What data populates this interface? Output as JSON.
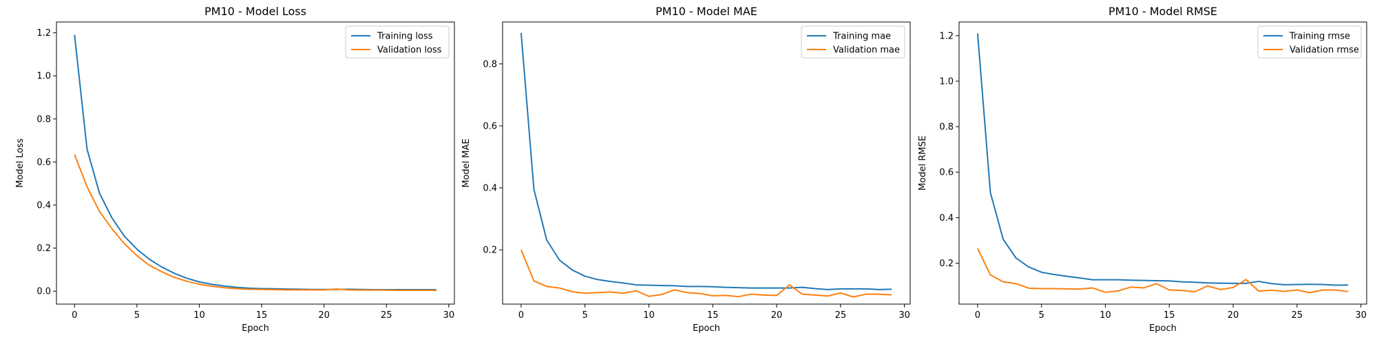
{
  "chart_data": [
    {
      "type": "line",
      "title": "PM10 - Model Loss",
      "xlabel": "Epoch",
      "ylabel": "Model Loss",
      "xlim": [
        -1.45,
        30.45
      ],
      "ylim": [
        -0.06,
        1.25
      ],
      "xticks": [
        0,
        5,
        10,
        15,
        20,
        25,
        30
      ],
      "yticks": [
        0.0,
        0.2,
        0.4,
        0.6,
        0.8,
        1.0,
        1.2
      ],
      "ytick_labels": [
        "0.0",
        "0.2",
        "0.4",
        "0.6",
        "0.8",
        "1.0",
        "1.2"
      ],
      "legend": "top-right",
      "grid": false,
      "x": [
        0,
        1,
        2,
        3,
        4,
        5,
        6,
        7,
        8,
        9,
        10,
        11,
        12,
        13,
        14,
        15,
        16,
        17,
        18,
        19,
        20,
        21,
        22,
        23,
        24,
        25,
        26,
        27,
        28,
        29
      ],
      "series": [
        {
          "name": "Training loss",
          "color": "#1f77b4",
          "values": [
            1.19,
            0.66,
            0.455,
            0.34,
            0.255,
            0.195,
            0.148,
            0.112,
            0.083,
            0.06,
            0.043,
            0.032,
            0.024,
            0.018,
            0.014,
            0.012,
            0.011,
            0.01,
            0.009,
            0.008,
            0.008,
            0.008,
            0.009,
            0.008,
            0.007,
            0.007,
            0.007,
            0.007,
            0.007,
            0.007
          ]
        },
        {
          "name": "Validation loss",
          "color": "#ff7f0e",
          "values": [
            0.635,
            0.485,
            0.37,
            0.29,
            0.22,
            0.165,
            0.12,
            0.09,
            0.064,
            0.046,
            0.032,
            0.023,
            0.016,
            0.012,
            0.009,
            0.008,
            0.007,
            0.006,
            0.006,
            0.006,
            0.006,
            0.01,
            0.006,
            0.005,
            0.005,
            0.005,
            0.004,
            0.004,
            0.004,
            0.004
          ]
        }
      ]
    },
    {
      "type": "line",
      "title": "PM10 - Model MAE",
      "xlabel": "Epoch",
      "ylabel": "Model MAE",
      "xlim": [
        -1.45,
        30.45
      ],
      "ylim": [
        0.025,
        0.935
      ],
      "xticks": [
        0,
        5,
        10,
        15,
        20,
        25,
        30
      ],
      "yticks": [
        0.2,
        0.4,
        0.6,
        0.8
      ],
      "ytick_labels": [
        "0.2",
        "0.4",
        "0.6",
        "0.8"
      ],
      "legend": "top-right",
      "grid": false,
      "x": [
        0,
        1,
        2,
        3,
        4,
        5,
        6,
        7,
        8,
        9,
        10,
        11,
        12,
        13,
        14,
        15,
        16,
        17,
        18,
        19,
        20,
        21,
        22,
        23,
        24,
        25,
        26,
        27,
        28,
        29
      ],
      "series": [
        {
          "name": "Training mae",
          "color": "#1f77b4",
          "values": [
            0.9,
            0.395,
            0.232,
            0.167,
            0.135,
            0.115,
            0.104,
            0.098,
            0.093,
            0.087,
            0.086,
            0.085,
            0.084,
            0.082,
            0.082,
            0.081,
            0.079,
            0.078,
            0.077,
            0.077,
            0.077,
            0.077,
            0.079,
            0.075,
            0.072,
            0.074,
            0.074,
            0.074,
            0.072,
            0.073
          ]
        },
        {
          "name": "Validation mae",
          "color": "#ff7f0e",
          "values": [
            0.2,
            0.1,
            0.082,
            0.077,
            0.065,
            0.06,
            0.062,
            0.064,
            0.06,
            0.068,
            0.05,
            0.056,
            0.071,
            0.062,
            0.059,
            0.052,
            0.053,
            0.049,
            0.057,
            0.054,
            0.053,
            0.087,
            0.057,
            0.054,
            0.051,
            0.061,
            0.048,
            0.057,
            0.057,
            0.055
          ]
        }
      ]
    },
    {
      "type": "line",
      "title": "PM10 - Model RMSE",
      "xlabel": "Epoch",
      "ylabel": "Model RMSE",
      "xlim": [
        -1.45,
        30.45
      ],
      "ylim": [
        0.02,
        1.26
      ],
      "xticks": [
        0,
        5,
        10,
        15,
        20,
        25,
        30
      ],
      "yticks": [
        0.2,
        0.4,
        0.6,
        0.8,
        1.0,
        1.2
      ],
      "ytick_labels": [
        "0.2",
        "0.4",
        "0.6",
        "0.8",
        "1.0",
        "1.2"
      ],
      "legend": "top-right",
      "grid": false,
      "x": [
        0,
        1,
        2,
        3,
        4,
        5,
        6,
        7,
        8,
        9,
        10,
        11,
        12,
        13,
        14,
        15,
        16,
        17,
        18,
        19,
        20,
        21,
        22,
        23,
        24,
        25,
        26,
        27,
        28,
        29
      ],
      "series": [
        {
          "name": "Training rmse",
          "color": "#1f77b4",
          "values": [
            1.21,
            0.51,
            0.305,
            0.223,
            0.183,
            0.16,
            0.15,
            0.142,
            0.135,
            0.127,
            0.127,
            0.127,
            0.125,
            0.124,
            0.123,
            0.122,
            0.118,
            0.116,
            0.113,
            0.112,
            0.111,
            0.111,
            0.12,
            0.11,
            0.105,
            0.106,
            0.107,
            0.106,
            0.103,
            0.104
          ]
        },
        {
          "name": "Validation rmse",
          "color": "#ff7f0e",
          "values": [
            0.265,
            0.148,
            0.118,
            0.11,
            0.09,
            0.088,
            0.088,
            0.087,
            0.086,
            0.091,
            0.072,
            0.078,
            0.095,
            0.091,
            0.11,
            0.082,
            0.08,
            0.074,
            0.1,
            0.084,
            0.093,
            0.128,
            0.077,
            0.081,
            0.076,
            0.082,
            0.07,
            0.082,
            0.082,
            0.075
          ]
        }
      ]
    }
  ]
}
